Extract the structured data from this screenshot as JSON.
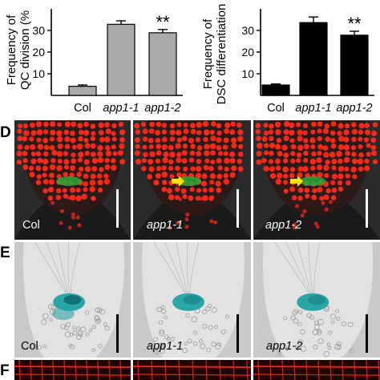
{
  "figure": {
    "panel_labels": {
      "upper_left": "",
      "d": "D",
      "e": "E",
      "f": "F"
    }
  },
  "chart_data": [
    {
      "type": "bar",
      "ylabel_line1": "Frequency of",
      "ylabel_line2": "QC division (%",
      "categories": [
        "Col",
        "app1-1",
        "app1-2"
      ],
      "values": [
        4.2,
        32.8,
        28.9
      ],
      "errors": [
        0.6,
        1.6,
        1.5
      ],
      "significance": [
        "",
        "",
        "**"
      ],
      "yticks": [
        10,
        20,
        30
      ],
      "ylim": [
        0,
        37
      ],
      "bar_color": "#a9a9a9"
    },
    {
      "type": "bar",
      "ylabel_line1": "Frequency of",
      "ylabel_line2": "DSC differentiation",
      "categories": [
        "Col",
        "app1-1",
        "app1-2"
      ],
      "values": [
        4.8,
        33.6,
        27.8
      ],
      "errors": [
        0.5,
        2.6,
        1.8
      ],
      "significance": [
        "",
        "",
        "**"
      ],
      "yticks": [
        10,
        20,
        30
      ],
      "ylim": [
        0,
        37
      ],
      "bar_color": "#000000"
    }
  ],
  "row_d": {
    "panels": [
      {
        "label": "Col",
        "italic": false,
        "arrow": false
      },
      {
        "label": "app1-1",
        "italic": true,
        "arrow": true
      },
      {
        "label": "app1-2",
        "italic": true,
        "arrow": true
      }
    ],
    "colors": {
      "red": "#ff2a1a",
      "green": "#27a83a",
      "arrow": "#ffe400"
    }
  },
  "row_e": {
    "panels": [
      {
        "label": "Col",
        "italic": false
      },
      {
        "label": "app1-1",
        "italic": true
      },
      {
        "label": "app1-2",
        "italic": true
      }
    ],
    "colors": {
      "stain": "#2aa5a8"
    }
  },
  "row_f": {
    "colors": {
      "membrane": "#ff2222"
    }
  }
}
